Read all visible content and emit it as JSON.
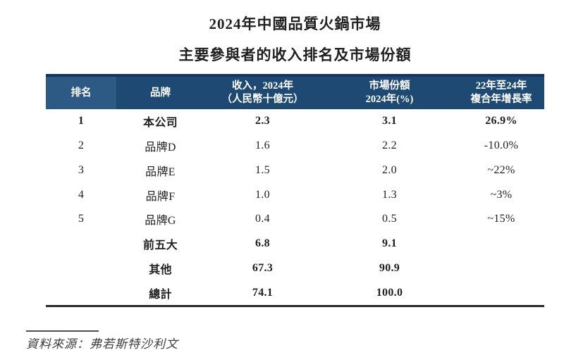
{
  "title": {
    "line1": "2024年中國品質火鍋市場",
    "line2": "主要參與者的收入排名及市場份額"
  },
  "table": {
    "columns": [
      {
        "line1": "排名",
        "line2": ""
      },
      {
        "line1": "品牌",
        "line2": ""
      },
      {
        "line1": "收入，2024年",
        "line2": "（人民幣十億元）"
      },
      {
        "line1": "市場份額",
        "line2": "2024年(%)"
      },
      {
        "line1": "22年至24年",
        "line2": "複合年增長率"
      }
    ],
    "rows": [
      {
        "rank": "1",
        "brand": "本公司",
        "revenue": "2.3",
        "share": "3.1",
        "cagr": "26.9%",
        "bold": true
      },
      {
        "rank": "2",
        "brand": "品牌D",
        "revenue": "1.6",
        "share": "2.2",
        "cagr": "-10.0%",
        "bold": false
      },
      {
        "rank": "3",
        "brand": "品牌E",
        "revenue": "1.5",
        "share": "2.0",
        "cagr": "~22%",
        "bold": false
      },
      {
        "rank": "4",
        "brand": "品牌F",
        "revenue": "1.0",
        "share": "1.3",
        "cagr": "~3%",
        "bold": false
      },
      {
        "rank": "5",
        "brand": "品牌G",
        "revenue": "0.4",
        "share": "0.5",
        "cagr": "~15%",
        "bold": false
      },
      {
        "rank": "",
        "brand": "前五大",
        "revenue": "6.8",
        "share": "9.1",
        "cagr": "",
        "bold": true
      },
      {
        "rank": "",
        "brand": "其他",
        "revenue": "67.3",
        "share": "90.9",
        "cagr": "",
        "bold": true
      },
      {
        "rank": "",
        "brand": "總計",
        "revenue": "74.1",
        "share": "100.0",
        "cagr": "",
        "bold": true
      }
    ]
  },
  "footer": {
    "source": "資料來源：弗若斯特沙利文"
  },
  "colors": {
    "header_dark": "#1e4973",
    "header_light": "#2d5a85",
    "header_strip": "#16355e",
    "bottom_rule": "#2a2a2a"
  }
}
